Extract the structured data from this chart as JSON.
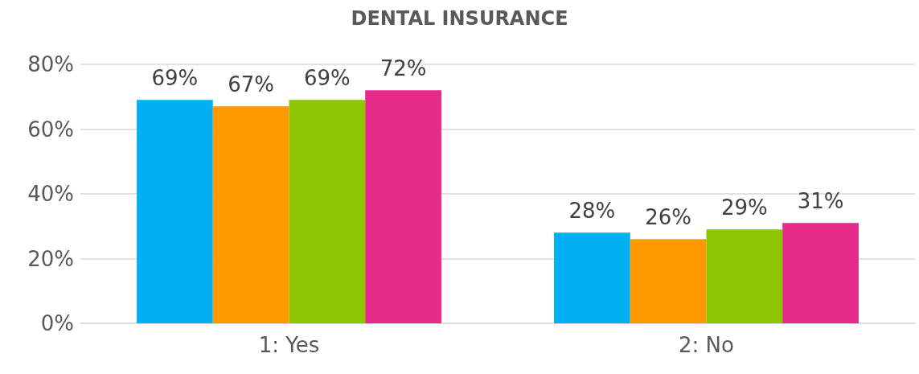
{
  "chart_data": {
    "type": "bar",
    "title": "DENTAL INSURANCE",
    "categories": [
      "1: Yes",
      "2: No"
    ],
    "series": [
      {
        "color": "#00b0f0",
        "values": [
          69,
          28
        ],
        "value_labels": [
          "69%",
          "28%"
        ]
      },
      {
        "color": "#ff9900",
        "values": [
          67,
          26
        ],
        "value_labels": [
          "67%",
          "26%"
        ]
      },
      {
        "color": "#8dc600",
        "values": [
          69,
          29
        ],
        "value_labels": [
          "69%",
          "29%"
        ]
      },
      {
        "color": "#e62a87",
        "values": [
          72,
          31
        ],
        "value_labels": [
          "72%",
          "31%"
        ]
      }
    ],
    "ylim": [
      0,
      80
    ],
    "yticks": [
      {
        "value": 0,
        "label": "0%"
      },
      {
        "value": 20,
        "label": "20%"
      },
      {
        "value": 40,
        "label": "40%"
      },
      {
        "value": 60,
        "label": "60%"
      },
      {
        "value": 80,
        "label": "80%"
      }
    ],
    "grid": "y"
  }
}
